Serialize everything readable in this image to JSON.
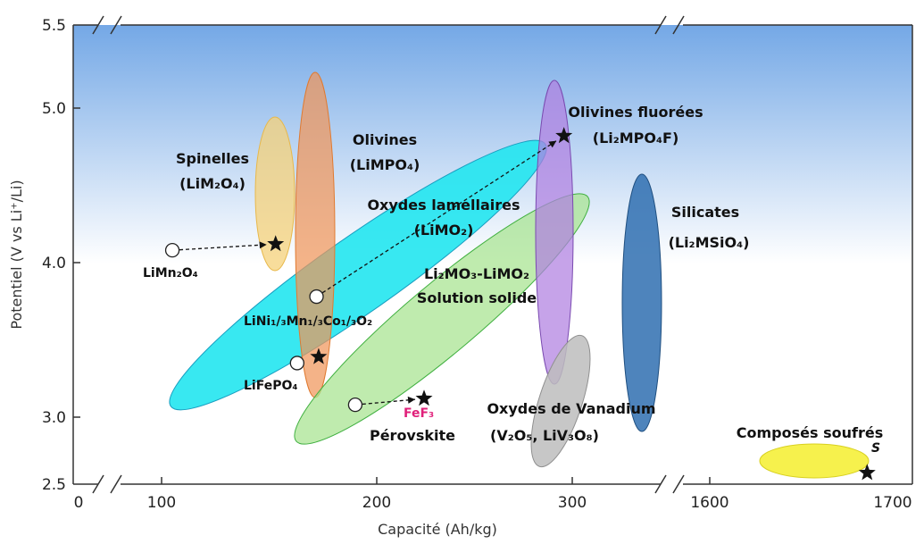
{
  "chart_data": {
    "type": "scatter",
    "xlabel": "Capacité (Ah/kg)",
    "ylabel": "Potentiel (V vs Li⁺/Li)",
    "x_ticks": [
      "0",
      "100",
      "200",
      "300",
      "1600",
      "1700"
    ],
    "y_ticks": [
      "2.5",
      "3.0",
      "4.0",
      "5.0",
      "5.5"
    ],
    "x_breaks": [
      50,
      350
    ],
    "y_break": 5.5,
    "regions": [
      {
        "label": "Spinelles",
        "formula": "(LiM₂O₄)",
        "color": "#f6d27a",
        "x_range": [
          150,
          156
        ],
        "y_range": [
          3.95,
          4.95
        ]
      },
      {
        "label": "Olivines",
        "formula": "(LiMPO₄)",
        "color": "#f0a060",
        "x_range": [
          165,
          185
        ],
        "y_range": [
          3.05,
          5.15
        ]
      },
      {
        "label": "Oxydes lamellaires",
        "formula": "(LiMO₂)",
        "color": "#22e5f0",
        "x_range": [
          100,
          290
        ],
        "y_range": [
          2.95,
          4.9
        ]
      },
      {
        "label": "Li₂MO₃-LiMO₂",
        "formula": "Solution solide",
        "color": "#a6e38f",
        "x_range": [
          185,
          310
        ],
        "y_range": [
          2.85,
          4.55
        ]
      },
      {
        "label": "Olivines fluorées",
        "formula": "(Li₂MPO₄F)",
        "color": "#b07fe0",
        "x_range": [
          280,
          300
        ],
        "y_range": [
          3.2,
          5.1
        ]
      },
      {
        "label": "Silicates",
        "formula": "(Li₂MSiO₄)",
        "color": "#2f6fb0",
        "x_range": [
          330,
          345
        ],
        "y_range": [
          2.95,
          4.55
        ]
      },
      {
        "label": "Oxydes de Vanadium",
        "formula": "(V₂O₅, LiV₃O₈)",
        "color": "#b8b8b8",
        "x_range": [
          280,
          310
        ],
        "y_range": [
          2.75,
          3.55
        ]
      },
      {
        "label": "Composés soufrés",
        "formula": "",
        "color": "#f5ef2e",
        "x_range": [
          1630,
          1700
        ],
        "y_range": [
          2.5,
          2.85
        ]
      }
    ],
    "current_materials": [
      {
        "label": "LiMn₂O₄",
        "x": 105,
        "y": 4.08
      },
      {
        "label": "LiNi₁/₃Mn₁/₃Co₁/₃O₂",
        "x": 172,
        "y": 3.78
      },
      {
        "label": "LiFePO₄",
        "x": 163,
        "y": 3.35
      },
      {
        "label": "",
        "x": 190,
        "y": 3.08
      }
    ],
    "target_materials": [
      {
        "label": "",
        "x": 153,
        "y": 4.12
      },
      {
        "label": "",
        "x": 287,
        "y": 4.82
      },
      {
        "label": "",
        "x": 173,
        "y": 3.39
      },
      {
        "label": "FeF₃",
        "x": 222,
        "y": 3.12
      },
      {
        "label": "S",
        "x": 1686,
        "y": 2.64
      }
    ],
    "extra_labels": [
      "Pérovskite"
    ],
    "arrows": [
      {
        "from": [
          105,
          4.08
        ],
        "to": [
          153,
          4.12
        ]
      },
      {
        "from": [
          172,
          3.78
        ],
        "to": [
          287,
          4.82
        ]
      },
      {
        "from": [
          190,
          3.08
        ],
        "to": [
          222,
          3.12
        ]
      }
    ],
    "high_voltage_band": [
      4.0,
      5.5
    ],
    "grid": false,
    "colors": {
      "background_band_top": "#7aaee8",
      "fef3_label": "#e0207a"
    }
  }
}
